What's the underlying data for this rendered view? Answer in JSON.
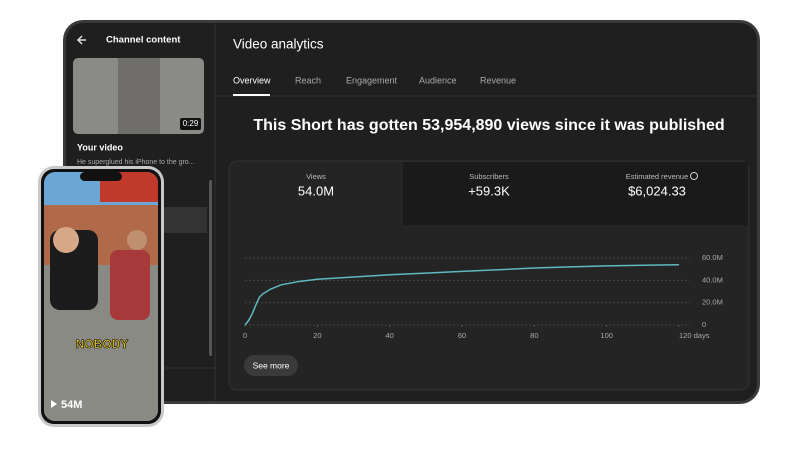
{
  "sidebar": {
    "title": "Channel content",
    "duration": "0:29",
    "video_title": "Your video",
    "video_description": "He superglued his iPhone to the gro..."
  },
  "phone": {
    "caption": "NOBODY",
    "views": "54M"
  },
  "header": {
    "title": "Video analytics"
  },
  "tabs": [
    "Overview",
    "Reach",
    "Engagement",
    "Audience",
    "Revenue"
  ],
  "headline": "This Short has gotten 53,954,890 views since it was published",
  "cards": [
    {
      "label": "Views",
      "value": "54.0M"
    },
    {
      "label": "Subscribers",
      "value": "+59.3K"
    },
    {
      "label": "Estimated revenue",
      "value": "$6,024.33"
    }
  ],
  "chart": {
    "type": "line",
    "color": "#5fb8c2",
    "x": [
      0,
      1,
      2,
      3,
      4,
      5,
      7,
      10,
      15,
      20,
      30,
      40,
      50,
      60,
      70,
      80,
      90,
      100,
      110,
      120
    ],
    "values": [
      0,
      4000000,
      10000000,
      18000000,
      25000000,
      28000000,
      32000000,
      36000000,
      39000000,
      41000000,
      43000000,
      45000000,
      46500000,
      48000000,
      49500000,
      51000000,
      52000000,
      53000000,
      53500000,
      54000000
    ],
    "xlim": [
      0,
      120
    ],
    "xticks": [
      0,
      20,
      40,
      60,
      80,
      100,
      {
        "value": 120,
        "label": "120 days"
      }
    ],
    "ylim": [
      0,
      60000000
    ],
    "yticks": [
      {
        "value": 0,
        "label": "0"
      },
      {
        "value": 20000000,
        "label": "20.0M"
      },
      {
        "value": 40000000,
        "label": "40.0M"
      },
      {
        "value": 60000000,
        "label": "60.0M"
      }
    ]
  },
  "see_more": "See more"
}
